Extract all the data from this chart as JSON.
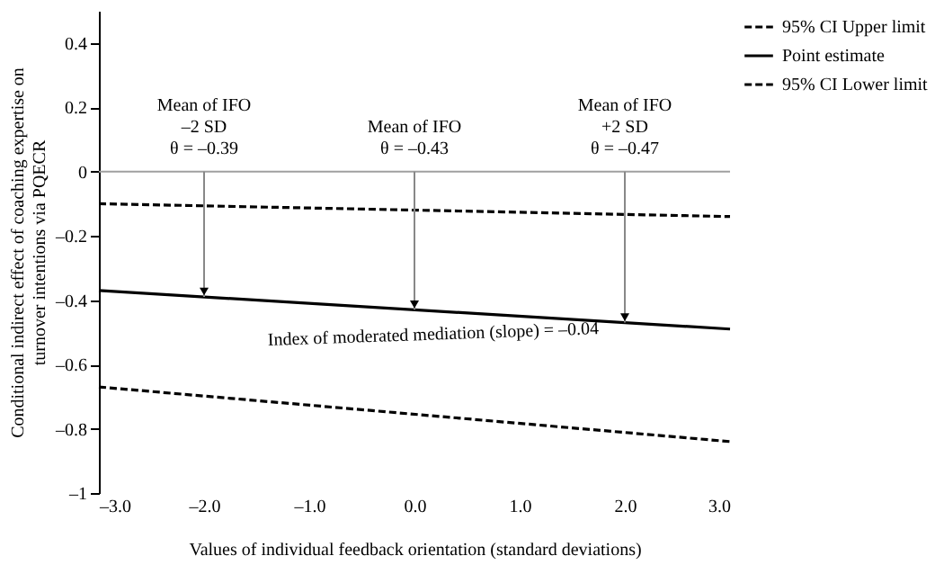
{
  "chart_data": {
    "type": "line",
    "xlabel": "Values of individual feedback orientation (standard deviations)",
    "ylabel": "Conditional indirect effect of coaching expertise on\nturnover intentions via PQECR",
    "xlim": [
      -3,
      3
    ],
    "xticks": [
      {
        "value": -3,
        "label": "–3.0"
      },
      {
        "value": -2,
        "label": "–2.0"
      },
      {
        "value": -1,
        "label": "–1.0"
      },
      {
        "value": 0,
        "label": "0.0"
      },
      {
        "value": 1,
        "label": "1.0"
      },
      {
        "value": 2,
        "label": "2.0"
      },
      {
        "value": 3,
        "label": "3.0"
      }
    ],
    "ylim": [
      -1,
      0.5
    ],
    "yticks": [
      {
        "value": -1,
        "label": "–1"
      },
      {
        "value": -0.8,
        "label": "–0.8"
      },
      {
        "value": -0.6,
        "label": "–0.6"
      },
      {
        "value": -0.4,
        "label": "–0.4"
      },
      {
        "value": -0.2,
        "label": "–0.2"
      },
      0,
      0.2,
      0.4
    ],
    "grid": false,
    "legend": "right",
    "marker": "none",
    "x": [
      -3,
      3
    ],
    "series": [
      {
        "name": "95% CI Upper limit",
        "color": "#000000",
        "line_style": "dashed",
        "values": [
          -0.1,
          -0.14
        ]
      },
      {
        "name": "Point estimate",
        "color": "#000000",
        "line_style": "solid",
        "values": [
          -0.37,
          -0.49
        ]
      },
      {
        "name": "95% CI Lower limit",
        "color": "#000000",
        "line_style": "dashed",
        "values": [
          -0.67,
          -0.84
        ]
      }
    ],
    "ref_lines": [
      {
        "axis": "y",
        "value": 0,
        "label": null,
        "color": "#a0a0a0"
      }
    ],
    "annotations": [
      {
        "text": "Mean of IFO\n–2 SD\nθ = –0.39",
        "x": -2,
        "y": -0.39
      },
      {
        "text": "Mean of IFO\nθ = –0.43",
        "x": 0,
        "y": -0.43
      },
      {
        "text": "Mean of IFO\n+2 SD\nθ = –0.47",
        "x": 2,
        "y": -0.47
      },
      "Index of moderated mediation (slope) = –0.04"
    ]
  }
}
